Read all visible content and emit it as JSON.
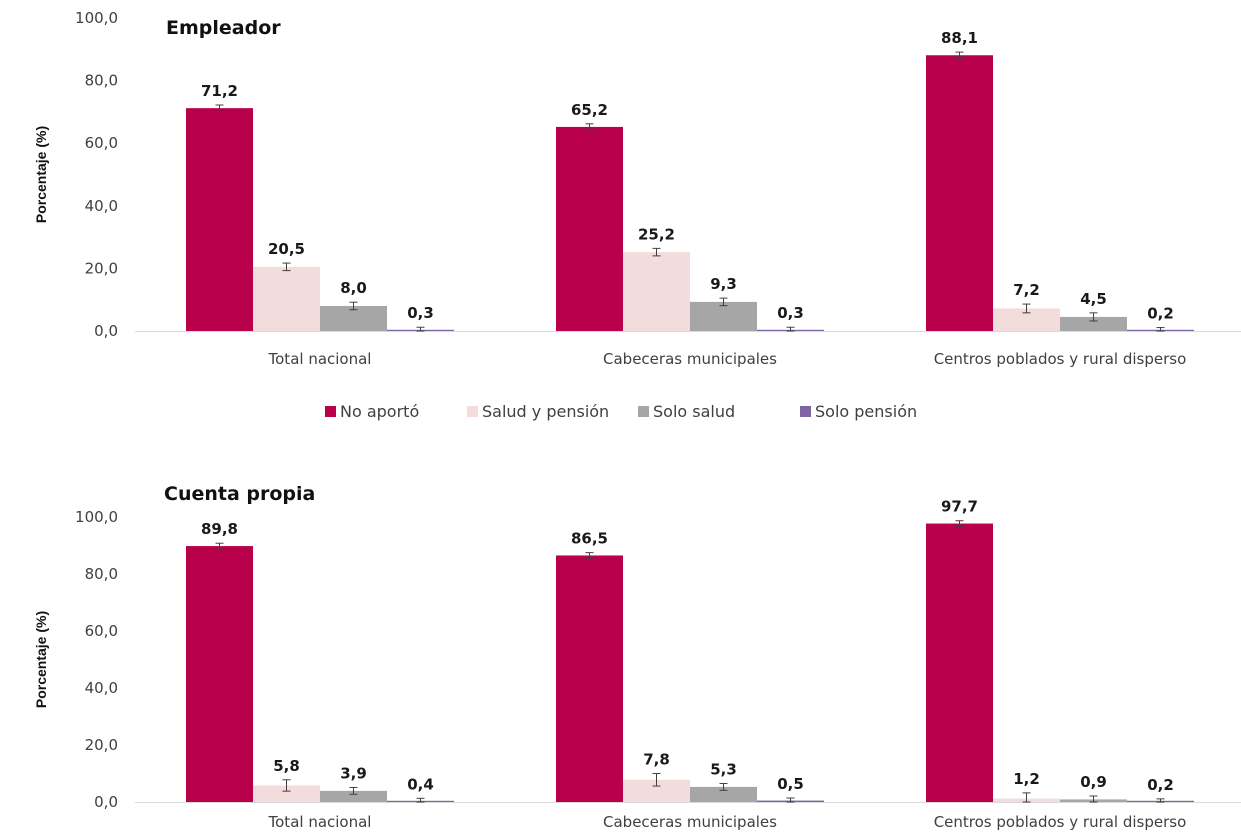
{
  "legend": [
    {
      "label": "No aportó",
      "color": "#B8004B"
    },
    {
      "label": "Salud y pensión",
      "color": "#F2DCDC"
    },
    {
      "label": "Solo salud",
      "color": "#A6A6A6"
    },
    {
      "label": "Solo pensión",
      "color": "#7F65A3"
    }
  ],
  "chart_data": [
    {
      "type": "bar",
      "title": "Empleador",
      "ylabel": "Porcentaje (%)",
      "ylim": [
        0,
        100
      ],
      "yticks": [
        "0,0",
        "20,0",
        "40,0",
        "60,0",
        "80,0",
        "100,0"
      ],
      "categories": [
        "Total nacional",
        "Cabeceras municipales",
        "Centros poblados y rural disperso"
      ],
      "series": [
        {
          "name": "No aportó",
          "values": [
            71.2,
            65.2,
            88.1
          ],
          "labels": [
            "71,2",
            "65,2",
            "88,1"
          ],
          "err": [
            1.0,
            1.0,
            1.0
          ]
        },
        {
          "name": "Salud y pensión",
          "values": [
            20.5,
            25.2,
            7.2
          ],
          "labels": [
            "20,5",
            "25,2",
            "7,2"
          ],
          "err": [
            1.2,
            1.2,
            1.4
          ]
        },
        {
          "name": "Solo salud",
          "values": [
            8.0,
            9.3,
            4.5
          ],
          "labels": [
            "8,0",
            "9,3",
            "4,5"
          ],
          "err": [
            1.2,
            1.2,
            1.3
          ]
        },
        {
          "name": "Solo pensión",
          "values": [
            0.3,
            0.3,
            0.2
          ],
          "labels": [
            "0,3",
            "0,3",
            "0,2"
          ],
          "err": [
            0.9,
            0.9,
            0.9
          ]
        }
      ]
    },
    {
      "type": "bar",
      "title": "Cuenta propia",
      "ylabel": "Porcentaje (%)",
      "ylim": [
        0,
        100
      ],
      "yticks": [
        "0,0",
        "20,0",
        "40,0",
        "60,0",
        "80,0",
        "100,0"
      ],
      "categories": [
        "Total nacional",
        "Cabeceras municipales",
        "Centros poblados y rural disperso"
      ],
      "series": [
        {
          "name": "No aportó",
          "values": [
            89.8,
            86.5,
            97.7
          ],
          "labels": [
            "89,8",
            "86,5",
            "97,7"
          ],
          "err": [
            1.0,
            1.0,
            1.0
          ]
        },
        {
          "name": "Salud y pensión",
          "values": [
            5.8,
            7.8,
            1.2
          ],
          "labels": [
            "5,8",
            "7,8",
            "1,2"
          ],
          "err": [
            2.0,
            2.2,
            2.0
          ]
        },
        {
          "name": "Solo salud",
          "values": [
            3.9,
            5.3,
            0.9
          ],
          "labels": [
            "3,9",
            "5,3",
            "0,9"
          ],
          "err": [
            1.2,
            1.2,
            1.2
          ]
        },
        {
          "name": "Solo pensión",
          "values": [
            0.4,
            0.5,
            0.2
          ],
          "labels": [
            "0,4",
            "0,5",
            "0,2"
          ],
          "err": [
            0.9,
            0.9,
            0.9
          ]
        }
      ]
    }
  ]
}
